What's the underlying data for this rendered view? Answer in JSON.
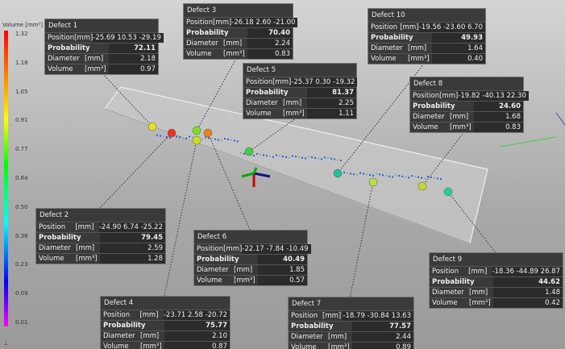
{
  "colorbar": {
    "title": "Volume [mm³]",
    "ticks": [
      "1.32",
      "1.18",
      "1.05",
      "0.91",
      "0.77",
      "0.64",
      "0.50",
      "0.36",
      "0.23",
      "0.09",
      "0.01"
    ]
  },
  "row_labels": {
    "position": "Position",
    "probability": "Probability",
    "diameter": "Diameter",
    "volume": "Volume"
  },
  "units": {
    "position": "[mm]",
    "diameter": "[mm]",
    "volume": "[mm³]"
  },
  "defects": [
    {
      "name": "Defect 1",
      "position": "-25.69 10.53 -29.19",
      "probability": "72.11",
      "diameter": "2.18",
      "volume": "0.97"
    },
    {
      "name": "Defect 2",
      "position": "-24.90 6.74 -25.22",
      "probability": "79.45",
      "diameter": "2.59",
      "volume": "1.28"
    },
    {
      "name": "Defect 3",
      "position": "-26.18 2.60 -21.00",
      "probability": "70.40",
      "diameter": "2.24",
      "volume": "0.83"
    },
    {
      "name": "Defect 4",
      "position": "-23.71 2.58 -20.72",
      "probability": "75.77",
      "diameter": "2.10",
      "volume": "0.87"
    },
    {
      "name": "Defect 5",
      "position": "-25.37 0.30 -19.32",
      "probability": "81.37",
      "diameter": "2.25",
      "volume": "1.11"
    },
    {
      "name": "Defect 6",
      "position": "-22.17 -7.84 -10.49",
      "probability": "40.49",
      "diameter": "1.85",
      "volume": "0.57"
    },
    {
      "name": "Defect 7",
      "position": "-18.79 -30.84 13.63",
      "probability": "77.57",
      "diameter": "2.44",
      "volume": "0.89"
    },
    {
      "name": "Defect 8",
      "position": "-19.82 -40.13 22.30",
      "probability": "24.60",
      "diameter": "1.68",
      "volume": "0.83"
    },
    {
      "name": "Defect 9",
      "position": "-18.36 -44.89 26.87",
      "probability": "44.62",
      "diameter": "1.48",
      "volume": "0.42"
    },
    {
      "name": "Defect 10",
      "position": "-19.56 -23.60 6.70",
      "probability": "49.93",
      "diameter": "1.64",
      "volume": "0.40"
    }
  ]
}
